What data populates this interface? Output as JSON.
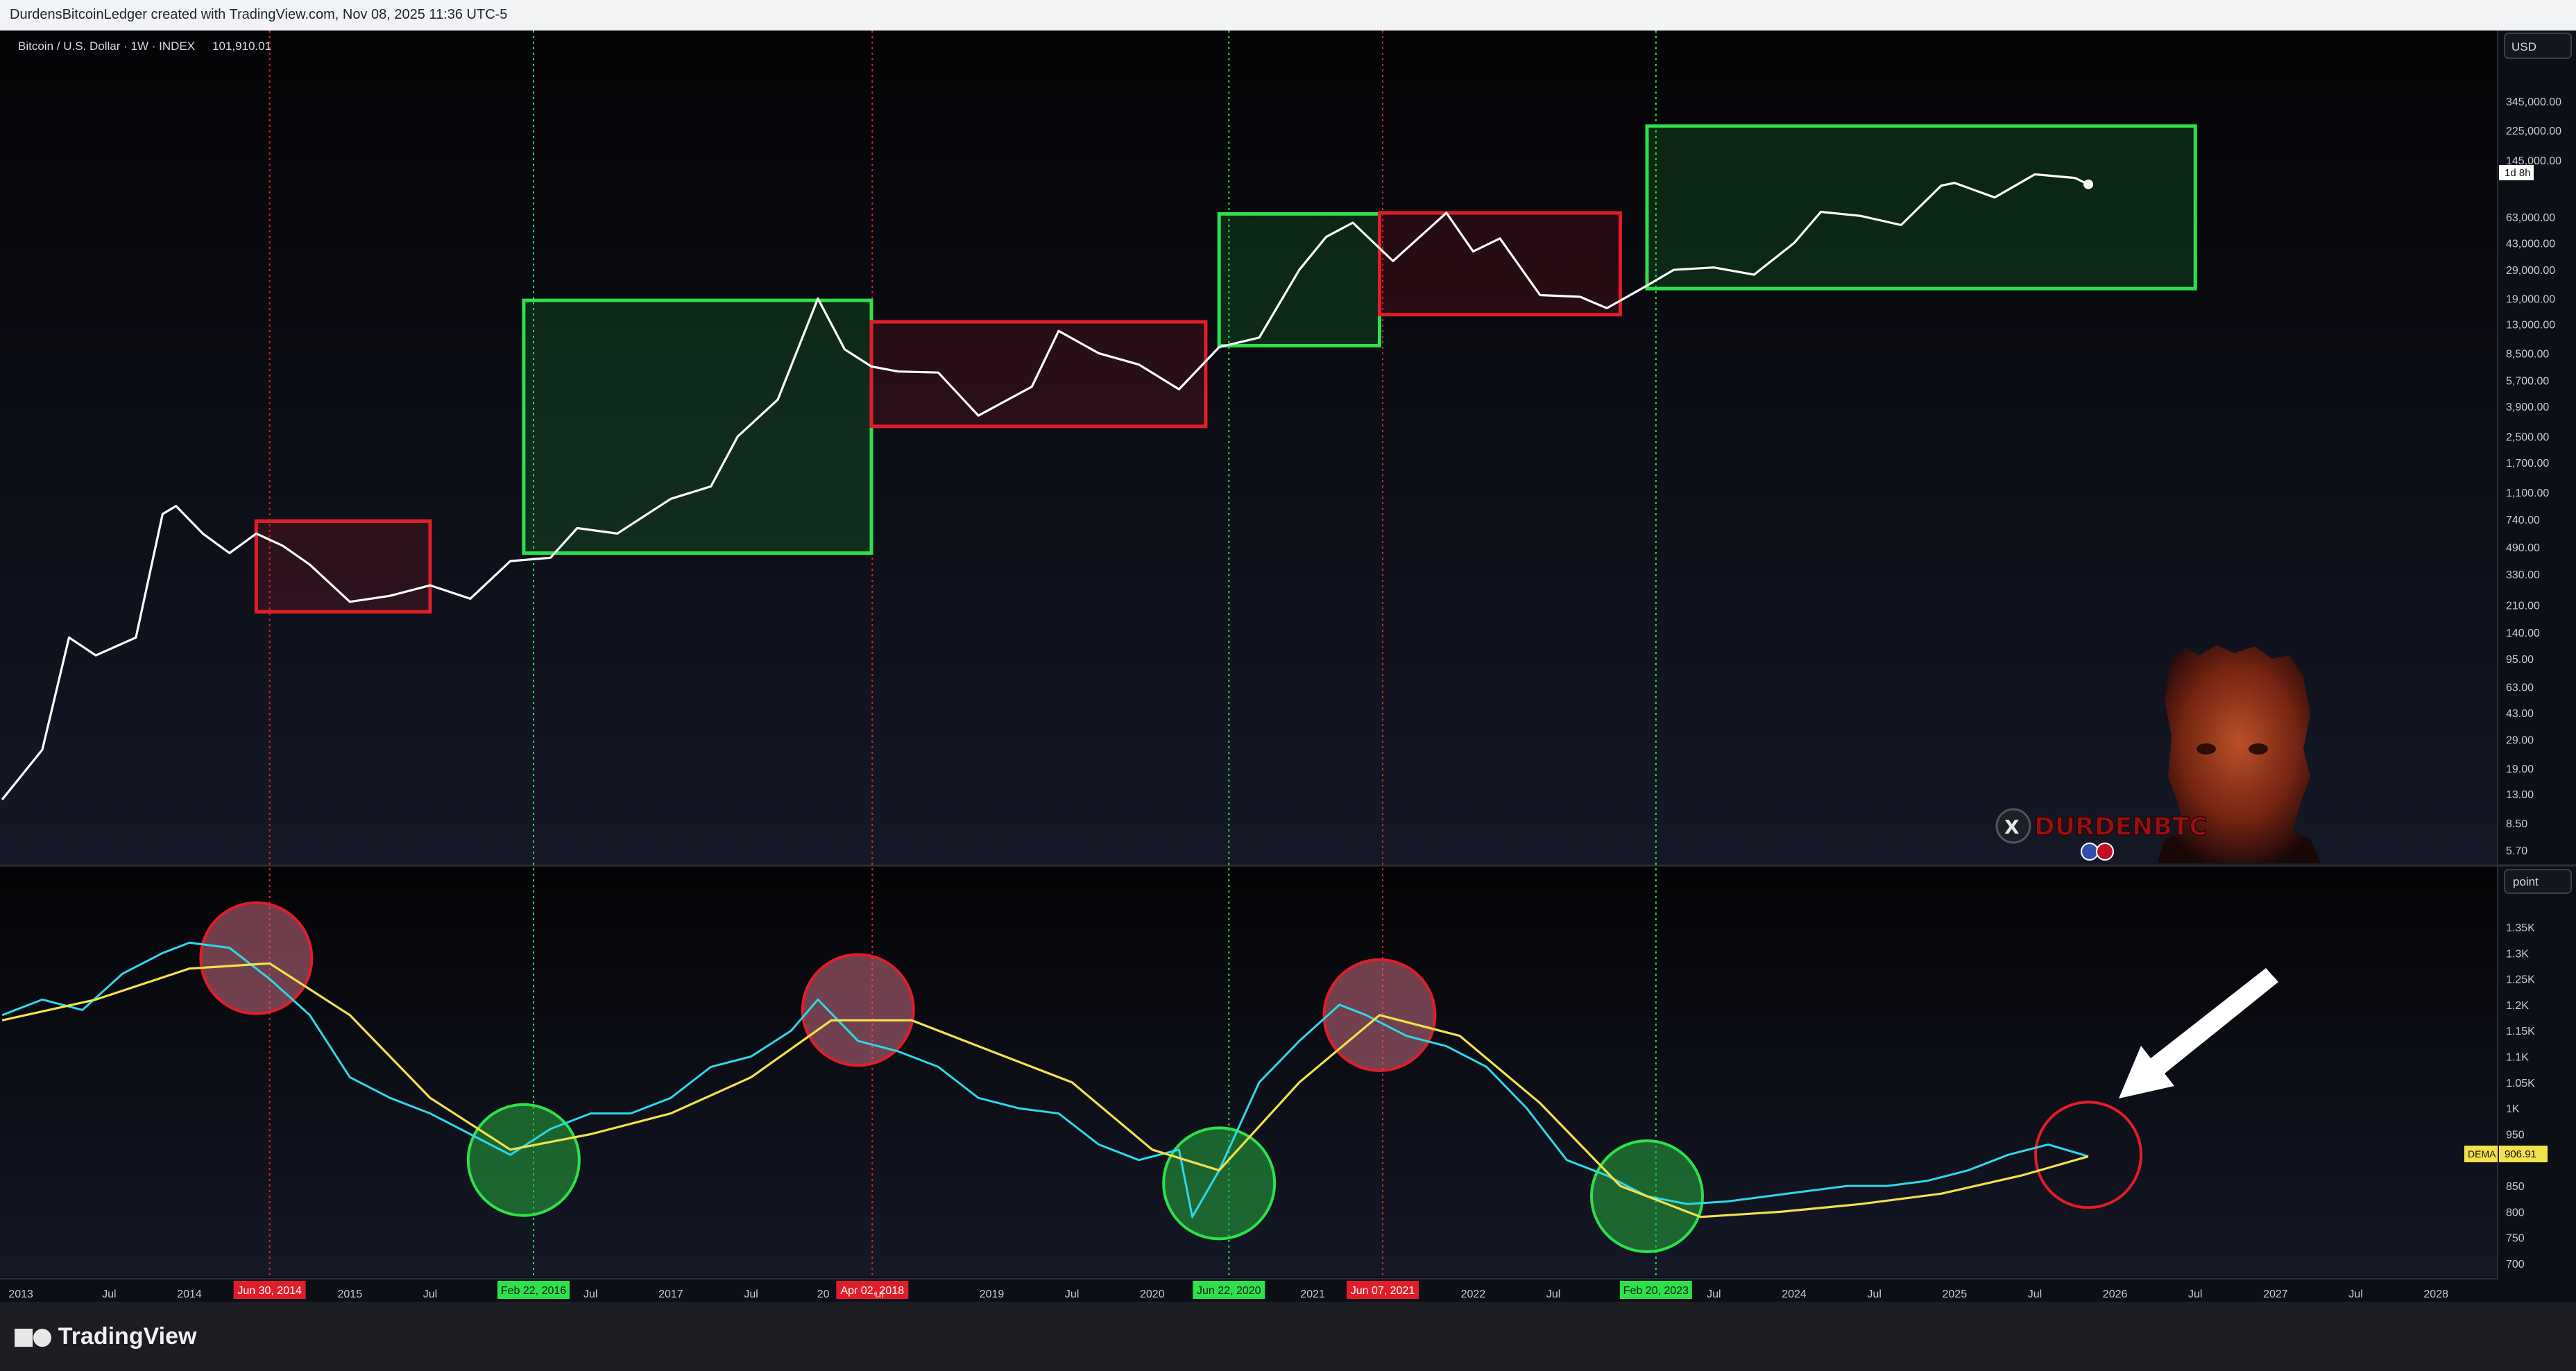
{
  "header": {
    "caption": "DurdensBitcoinLedger created with TradingView.com, Nov 08, 2025 11:36 UTC-5"
  },
  "footer": {
    "brand": "TradingView",
    "logo_icon": "tradingview-logo-icon"
  },
  "price_pane": {
    "symbol_label": "Bitcoin / U.S. Dollar · 1W · INDEX",
    "last_value": "101,910.01",
    "currency_button": "USD",
    "countdown_badge": "1d 8h",
    "axis_ticks": [
      "345,000.00",
      "225,000.00",
      "145,000.00",
      "63,000.00",
      "43,000.00",
      "29,000.00",
      "19,000.00",
      "13,000.00",
      "8,500.00",
      "5,700.00",
      "3,900.00",
      "2,500.00",
      "1,700.00",
      "1,100.00",
      "740.00",
      "490.00",
      "330.00",
      "210.00",
      "140.00",
      "95.00",
      "63.00",
      "43.00",
      "29.00",
      "19.00",
      "13.00",
      "8.50",
      "5.70"
    ]
  },
  "indicator_pane": {
    "unit_button": "point",
    "axis_ticks": [
      "1.35K",
      "1.3K",
      "1.25K",
      "1.2K",
      "1.15K",
      "1.1K",
      "1.05K",
      "1K",
      "950",
      "850",
      "800",
      "750",
      "700"
    ],
    "dema_badge_label": "DEMA",
    "dema_value": "906.91"
  },
  "time_axis": {
    "ticks": [
      "2013",
      "Jul",
      "2014",
      "2015",
      "Jul",
      "Jul",
      "2017",
      "Jul",
      "20",
      "ul",
      "2019",
      "Jul",
      "2020",
      "2021",
      "2022",
      "Jul",
      "Jul",
      "2024",
      "Jul",
      "2025",
      "Jul",
      "2026",
      "Jul",
      "2027",
      "Jul",
      "2028"
    ],
    "cycle_dates": [
      {
        "label": "Jun 30, 2014",
        "kind": "top"
      },
      {
        "label": "Feb 22, 2016",
        "kind": "bottom"
      },
      {
        "label": "Apr 02, 2018",
        "kind": "top"
      },
      {
        "label": "Jun 22, 2020",
        "kind": "bottom"
      },
      {
        "label": "Jun 07, 2021",
        "kind": "top"
      },
      {
        "label": "Feb 20, 2023",
        "kind": "bottom"
      }
    ]
  },
  "watermark": {
    "handle": "DURDENBTC",
    "x_icon": "x-logo-icon",
    "avatar": "portrait-avatar"
  },
  "colors": {
    "background": "#0a0c12",
    "price_line": "#ffffff",
    "indicator_line": "#2ed8e8",
    "dema_line": "#f2e14c",
    "bull_box": "#2ee04a",
    "bear_box": "#e01e2a"
  },
  "chart_data": [
    {
      "type": "line",
      "scale": "log",
      "series": [
        {
          "x": [
            "2012-11",
            "2013-02",
            "2013-04",
            "2013-06",
            "2013-09",
            "2013-11",
            "2013-12",
            "2014-02",
            "2014-04",
            "2014-06",
            "2014-08",
            "2014-10",
            "2015-01",
            "2015-04",
            "2015-07",
            "2015-10",
            "2016-01",
            "2016-04",
            "2016-06",
            "2016-09",
            "2017-01",
            "2017-04",
            "2017-06",
            "2017-09",
            "2017-12",
            "2018-02",
            "2018-04",
            "2018-06",
            "2018-09",
            "2018-12",
            "2019-04",
            "2019-06",
            "2019-09",
            "2019-12",
            "2020-03",
            "2020-06",
            "2020-09",
            "2020-12",
            "2021-02",
            "2021-04",
            "2021-07",
            "2021-11",
            "2022-01",
            "2022-03",
            "2022-06",
            "2022-09",
            "2022-11",
            "2023-02",
            "2023-04",
            "2023-07",
            "2023-10",
            "2024-01",
            "2024-03",
            "2024-06",
            "2024-09",
            "2024-12",
            "2025-01",
            "2025-04",
            "2025-07",
            "2025-10",
            "2025-11"
          ],
          "y": [
            12,
            25,
            130,
            100,
            130,
            800,
            900,
            600,
            450,
            600,
            500,
            380,
            220,
            240,
            280,
            230,
            400,
            420,
            650,
            600,
            1000,
            1200,
            2500,
            4300,
            19000,
            9000,
            7000,
            6500,
            6400,
            3400,
            5200,
            11800,
            8500,
            7200,
            5000,
            9300,
            10700,
            29000,
            47000,
            58000,
            33000,
            67000,
            38000,
            46000,
            20000,
            19500,
            16500,
            23000,
            29000,
            30000,
            27000,
            43000,
            68000,
            64000,
            56000,
            100000,
            104000,
            84000,
            118000,
            112000,
            101910
          ]
        }
      ],
      "boxes": [
        {
          "kind": "bear",
          "x0": "2014-06",
          "x1": "2015-07",
          "y0": 190,
          "y1": 720
        },
        {
          "kind": "bull",
          "x0": "2016-02",
          "x1": "2018-04",
          "y0": 450,
          "y1": 18500
        },
        {
          "kind": "bear",
          "x0": "2018-04",
          "x1": "2020-05",
          "y0": 2900,
          "y1": 13500
        },
        {
          "kind": "bull",
          "x0": "2020-06",
          "x1": "2021-06",
          "y0": 9500,
          "y1": 66000
        },
        {
          "kind": "bear",
          "x0": "2021-06",
          "x1": "2022-12",
          "y0": 15000,
          "y1": 67000
        },
        {
          "kind": "bull",
          "x0": "2023-02",
          "x1": "2026-07",
          "y0": 22000,
          "y1": 240000
        }
      ]
    },
    {
      "type": "line",
      "series": [
        {
          "name": "indicator",
          "x": [
            "2012-11",
            "2013-02",
            "2013-05",
            "2013-08",
            "2013-11",
            "2014-01",
            "2014-04",
            "2014-07",
            "2014-10",
            "2015-01",
            "2015-04",
            "2015-07",
            "2015-10",
            "2016-01",
            "2016-04",
            "2016-07",
            "2016-10",
            "2017-01",
            "2017-04",
            "2017-07",
            "2017-10",
            "2017-12",
            "2018-03",
            "2018-06",
            "2018-09",
            "2018-12",
            "2019-03",
            "2019-06",
            "2019-09",
            "2019-12",
            "2020-03",
            "2020-04",
            "2020-06",
            "2020-09",
            "2020-12",
            "2021-03",
            "2021-05",
            "2021-08",
            "2021-11",
            "2022-02",
            "2022-05",
            "2022-08",
            "2022-11",
            "2023-02",
            "2023-05",
            "2023-08",
            "2023-11",
            "2024-02",
            "2024-05",
            "2024-08",
            "2024-11",
            "2025-02",
            "2025-05",
            "2025-08",
            "2025-11"
          ],
          "y": [
            1180,
            1210,
            1190,
            1260,
            1300,
            1320,
            1310,
            1250,
            1180,
            1060,
            1020,
            990,
            950,
            910,
            960,
            990,
            990,
            1020,
            1080,
            1100,
            1150,
            1210,
            1130,
            1110,
            1080,
            1020,
            1000,
            990,
            930,
            900,
            920,
            790,
            880,
            1050,
            1130,
            1200,
            1180,
            1140,
            1120,
            1080,
            1000,
            900,
            870,
            830,
            815,
            820,
            830,
            840,
            850,
            850,
            860,
            880,
            910,
            930,
            907
          ]
        },
        {
          "name": "DEMA",
          "x": [
            "2012-11",
            "2013-06",
            "2014-01",
            "2014-07",
            "2015-01",
            "2015-07",
            "2016-01",
            "2016-07",
            "2017-01",
            "2017-07",
            "2018-01",
            "2018-07",
            "2019-01",
            "2019-07",
            "2020-01",
            "2020-06",
            "2020-12",
            "2021-06",
            "2021-12",
            "2022-06",
            "2022-12",
            "2023-06",
            "2023-12",
            "2024-06",
            "2024-12",
            "2025-06",
            "2025-11"
          ],
          "y": [
            1170,
            1210,
            1270,
            1280,
            1180,
            1020,
            920,
            950,
            990,
            1060,
            1170,
            1170,
            1110,
            1050,
            920,
            880,
            1050,
            1180,
            1140,
            1010,
            850,
            790,
            800,
            815,
            835,
            870,
            906.91
          ]
        }
      ],
      "circles": [
        {
          "kind": "top",
          "x": "2014-06",
          "y": 1290
        },
        {
          "kind": "bottom",
          "x": "2016-02",
          "y": 900
        },
        {
          "kind": "top",
          "x": "2018-03",
          "y": 1190
        },
        {
          "kind": "bottom",
          "x": "2020-06",
          "y": 855
        },
        {
          "kind": "top",
          "x": "2021-06",
          "y": 1180
        },
        {
          "kind": "bottom",
          "x": "2023-02",
          "y": 830
        },
        {
          "kind": "now",
          "x": "2025-11",
          "y": 910
        }
      ]
    }
  ]
}
